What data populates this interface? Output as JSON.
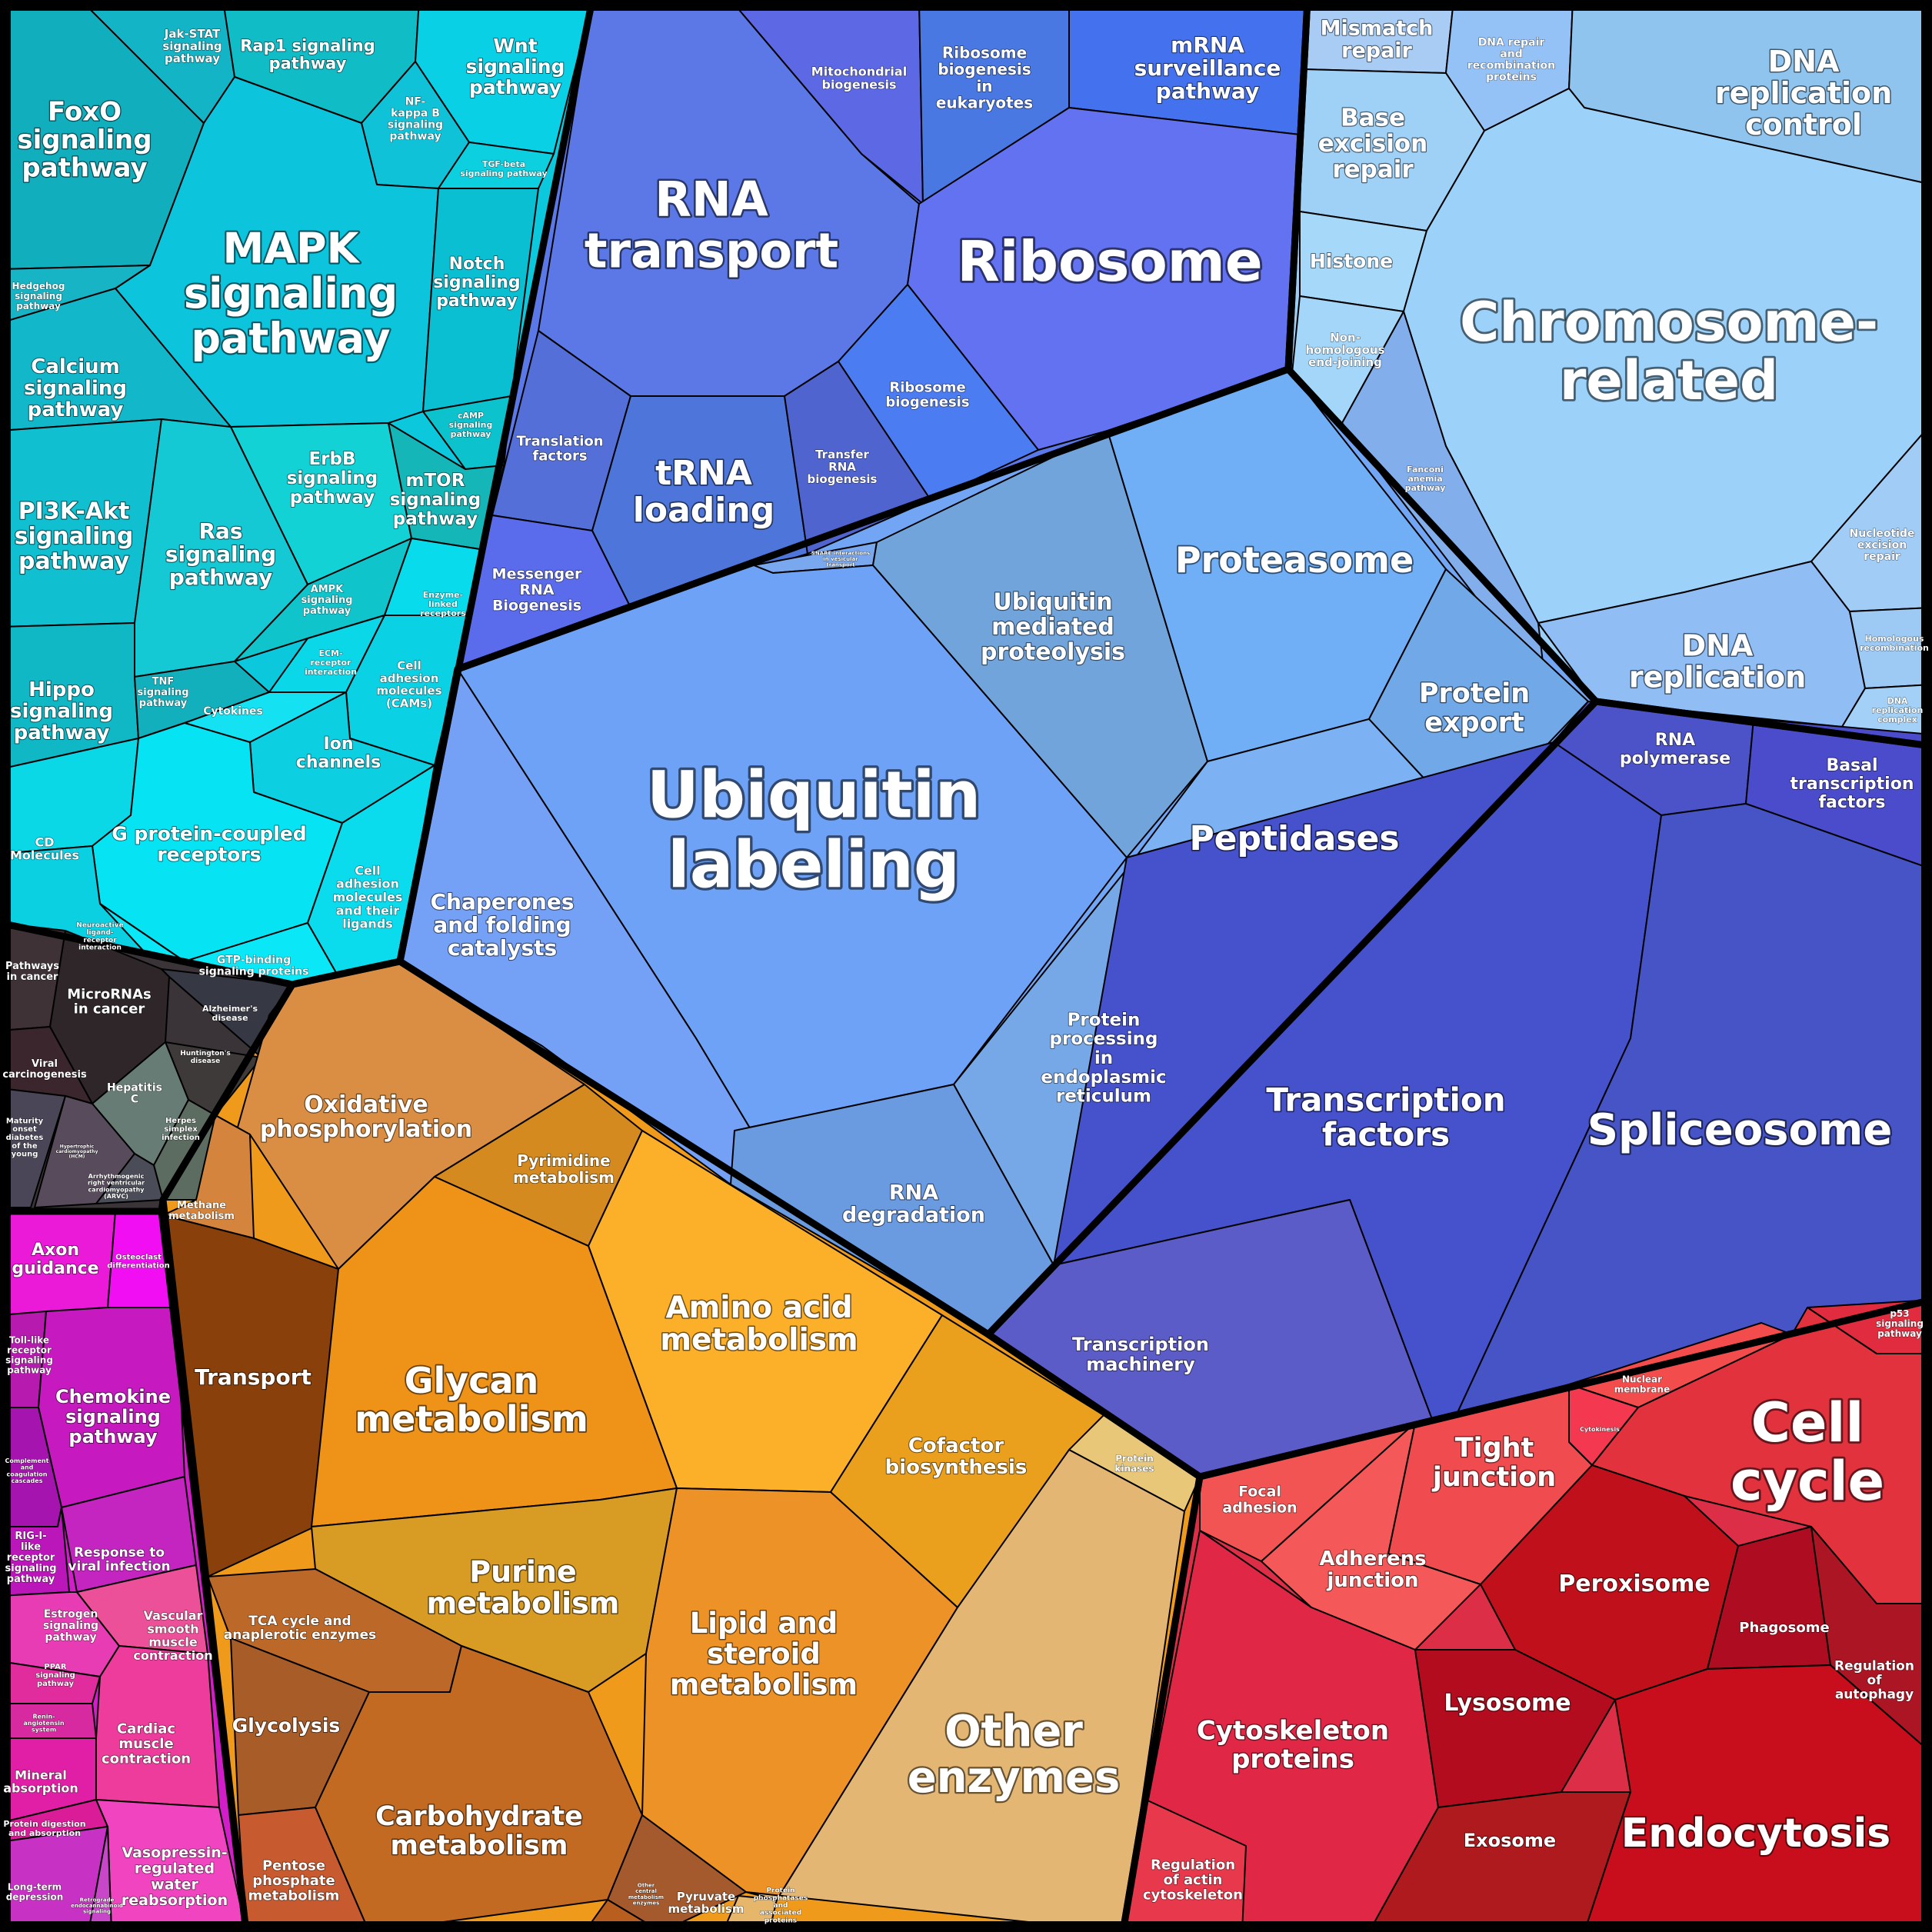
{
  "diagram": {
    "groups": [
      {
        "name": "signaling",
        "color": "#0bc8dc"
      },
      {
        "name": "genetic-information",
        "color": "#5a78e8"
      },
      {
        "name": "chromosome",
        "color": "#9ccdf5"
      },
      {
        "name": "protein-processing",
        "color": "#72a6f4"
      },
      {
        "name": "transcription",
        "color": "#4753cc"
      },
      {
        "name": "diseases",
        "color": "#3a3438"
      },
      {
        "name": "metabolism",
        "color": "#ef9a1a"
      },
      {
        "name": "organismal-systems",
        "color": "#d21ec8"
      },
      {
        "name": "cellular-processes",
        "color": "#dc2e46"
      }
    ],
    "cells": [
      {
        "id": "foxo",
        "label": "FoxO signaling pathway",
        "color": "#11aebe"
      },
      {
        "id": "jak-stat",
        "label": "Jak-STAT signaling pathway",
        "color": "#12b4c6"
      },
      {
        "id": "rap1",
        "label": "Rap1 signaling pathway",
        "color": "#10bcc6"
      },
      {
        "id": "wnt",
        "label": "Wnt signaling pathway",
        "color": "#0ad0e6"
      },
      {
        "id": "nfkb",
        "label": "NF-kappa B signaling pathway",
        "color": "#10c2d8"
      },
      {
        "id": "tgf",
        "label": "TGF-beta signaling pathway",
        "color": "#0ccfe0"
      },
      {
        "id": "mapk",
        "label": "MAPK signaling pathway",
        "color": "#0cc4dc"
      },
      {
        "id": "hedgehog",
        "label": "Hedgehog signaling pathway",
        "color": "#16b4c4"
      },
      {
        "id": "notch",
        "label": "Notch signaling pathway",
        "color": "#0bbfd2"
      },
      {
        "id": "calcium",
        "label": "Calcium signaling pathway",
        "color": "#12b8ca"
      },
      {
        "id": "camp",
        "label": "cAMP signaling pathway",
        "color": "#0cc2cc"
      },
      {
        "id": "erbb",
        "label": "ErbB signaling pathway",
        "color": "#12d2d6"
      },
      {
        "id": "mtor",
        "label": "mTOR signaling pathway",
        "color": "#14b6b8"
      },
      {
        "id": "pi3k",
        "label": "PI3K-Akt signaling pathway",
        "color": "#10c0d0"
      },
      {
        "id": "ras",
        "label": "Ras signaling pathway",
        "color": "#14c8d4"
      },
      {
        "id": "ampk",
        "label": "AMPK signaling pathway",
        "color": "#10c4cc"
      },
      {
        "id": "enzyme-linked",
        "label": "Enzyme-linked receptors",
        "color": "#08dcec"
      },
      {
        "id": "ecm",
        "label": "ECM-receptor interaction",
        "color": "#0ad8e8"
      },
      {
        "id": "cam",
        "label": "Cell adhesion molecules (CAMs)",
        "color": "#0ad2e4"
      },
      {
        "id": "hippo",
        "label": "Hippo signaling pathway",
        "color": "#10b8c6"
      },
      {
        "id": "tnf",
        "label": "TNF signaling pathway",
        "color": "#12b0bc"
      },
      {
        "id": "cytokines",
        "label": "Cytokines",
        "color": "#14e2f2"
      },
      {
        "id": "ion",
        "label": "Ion channels",
        "color": "#0ccfe2"
      },
      {
        "id": "cd",
        "label": "CD Molecules",
        "color": "#0ad8e6"
      },
      {
        "id": "gpcr",
        "label": "G protein-coupled receptors",
        "color": "#06e4f4"
      },
      {
        "id": "cell-adh-lig",
        "label": "Cell adhesion molecules and their ligands",
        "color": "#0adced"
      },
      {
        "id": "neuroactive",
        "label": "Neuroactive ligand-receptor interaction",
        "color": "#0ad0e2"
      },
      {
        "id": "gtp",
        "label": "GTP-binding signaling proteins",
        "color": "#0ae8f8"
      },
      {
        "id": "mito-bio",
        "label": "Mitochondrial biogenesis",
        "color": "#5c68e4"
      },
      {
        "id": "ribo-euk",
        "label": "Ribosome biogenesis in eukaryotes",
        "color": "#4a78e2"
      },
      {
        "id": "mrna-surv",
        "label": "mRNA surveillance pathway",
        "color": "#4472ee"
      },
      {
        "id": "rna-transport",
        "label": "RNA transport",
        "color": "#5b78e6"
      },
      {
        "id": "ribosome",
        "label": "Ribosome",
        "color": "#6272f0"
      },
      {
        "id": "ribo-bio",
        "label": "Ribosome biogenesis",
        "color": "#4c7cf2"
      },
      {
        "id": "transl-factors",
        "label": "Translation factors",
        "color": "#5470d8"
      },
      {
        "id": "trna-loading",
        "label": "tRNA loading",
        "color": "#4e76da"
      },
      {
        "id": "transfer-rna",
        "label": "Transfer RNA biogenesis",
        "color": "#5064d0"
      },
      {
        "id": "messenger-rna",
        "label": "Messenger RNA Biogenesis",
        "color": "#5a6cec"
      },
      {
        "id": "mismatch",
        "label": "Mismatch repair",
        "color": "#a8ccf4"
      },
      {
        "id": "dna-repair-rec",
        "label": "DNA repair and recombination proteins",
        "color": "#94c2f6"
      },
      {
        "id": "dna-rep-ctrl",
        "label": "DNA replication control",
        "color": "#8fc4ee"
      },
      {
        "id": "ber",
        "label": "Base excision repair",
        "color": "#9fd0f6"
      },
      {
        "id": "histone",
        "label": "Histone",
        "color": "#a6d8fa"
      },
      {
        "id": "chromosome",
        "label": "Chromosome-related",
        "color": "#9cd2fa"
      },
      {
        "id": "nhej",
        "label": "Non-homologous end-joining",
        "color": "#a4d6fa"
      },
      {
        "id": "fanconi",
        "label": "Fanconi anemia pathway",
        "color": "#82aeec"
      },
      {
        "id": "ner",
        "label": "Nucleotide excision repair",
        "color": "#a0ccf6"
      },
      {
        "id": "dna-rep",
        "label": "DNA replication",
        "color": "#90bef4"
      },
      {
        "id": "homologous",
        "label": "Homologous recombination",
        "color": "#9ccaf4"
      },
      {
        "id": "dna-rep-complex",
        "label": "DNA replication complex",
        "color": "#a2d0f6"
      },
      {
        "id": "snare",
        "label": "SNARE interactions in vesicular transport",
        "color": "#7aa8ee"
      },
      {
        "id": "ubiq-prot",
        "label": "Ubiquitin mediated proteolysis",
        "color": "#72a4dc"
      },
      {
        "id": "proteasome",
        "label": "Proteasome",
        "color": "#70aef6"
      },
      {
        "id": "ubiq-label",
        "label": "Ubiquitin labeling",
        "color": "#6ea2f6"
      },
      {
        "id": "protein-export",
        "label": "Protein export",
        "color": "#70a8e8"
      },
      {
        "id": "chaperones",
        "label": "Chaperones and folding catalysts",
        "color": "#74a0f6"
      },
      {
        "id": "peptidases",
        "label": "Peptidases",
        "color": "#7cb2f4"
      },
      {
        "id": "er-proc",
        "label": "Protein processing in endoplasmic reticulum",
        "color": "#76a8e8"
      },
      {
        "id": "rna-deg",
        "label": "RNA degradation",
        "color": "#6a9ae0"
      },
      {
        "id": "rna-pol",
        "label": "RNA polymerase",
        "color": "#4c52c8"
      },
      {
        "id": "basal-tf",
        "label": "Basal transcription factors",
        "color": "#4b4ccc"
      },
      {
        "id": "tf",
        "label": "Transcription factors",
        "color": "#4652cc"
      },
      {
        "id": "spliceosome",
        "label": "Spliceosome",
        "color": "#4654c6"
      },
      {
        "id": "trans-mach",
        "label": "Transcription machinery",
        "color": "#5c5cc8"
      },
      {
        "id": "path-cancer",
        "label": "Pathways in cancer",
        "color": "#3e3236"
      },
      {
        "id": "microrna",
        "label": "MicroRNAs in cancer",
        "color": "#2e2628"
      },
      {
        "id": "alzheimer",
        "label": "Alzheimer's disease",
        "color": "#363844"
      },
      {
        "id": "viral-carc",
        "label": "Viral carcinogenesis",
        "color": "#3a262c"
      },
      {
        "id": "huntington",
        "label": "Huntington's disease",
        "color": "#3e3a3a"
      },
      {
        "id": "hepatitis",
        "label": "Hepatitis C",
        "color": "#667c74"
      },
      {
        "id": "herpes",
        "label": "Herpes simplex infection",
        "color": "#5c6c60"
      },
      {
        "id": "mody",
        "label": "Maturity onset diabetes of the young",
        "color": "#4a4658"
      },
      {
        "id": "hcm",
        "label": "Hypertrophic cardiomyopathy (HCM)",
        "color": "#584c5c"
      },
      {
        "id": "arvc",
        "label": "Arrhythmogenic right ventricular cardiomyopathy (ARVC)",
        "color": "#4a4c58"
      },
      {
        "id": "oxphos",
        "label": "Oxidative phosphorylation",
        "color": "#da8e44"
      },
      {
        "id": "pyrimidine",
        "label": "Pyrimidine metabolism",
        "color": "#d48a1e"
      },
      {
        "id": "methane",
        "label": "Methane metabolism",
        "color": "#d4843c"
      },
      {
        "id": "amino-acid",
        "label": "Amino acid metabolism",
        "color": "#fcb02a"
      },
      {
        "id": "transport",
        "label": "Transport",
        "color": "#8a400a"
      },
      {
        "id": "glycan",
        "label": "Glycan metabolism",
        "color": "#ee9218"
      },
      {
        "id": "cofactor",
        "label": "Cofactor biosynthesis",
        "color": "#eaa01c"
      },
      {
        "id": "protein-kinases",
        "label": "Protein kinases",
        "color": "#e8c878"
      },
      {
        "id": "purine",
        "label": "Purine metabolism",
        "color": "#d89c24"
      },
      {
        "id": "lipid",
        "label": "Lipid and steroid metabolism",
        "color": "#ec9226"
      },
      {
        "id": "tca",
        "label": "TCA cycle and anaplerotic enzymes",
        "color": "#bc6828"
      },
      {
        "id": "other-enz",
        "label": "Other enzymes",
        "color": "#e4b674"
      },
      {
        "id": "glycolysis",
        "label": "Glycolysis",
        "color": "#a85c28"
      },
      {
        "id": "carb",
        "label": "Carbohydrate metabolism",
        "color": "#c26a22"
      },
      {
        "id": "pentose",
        "label": "Pentose phosphate metabolism",
        "color": "#c85a30"
      },
      {
        "id": "other-central",
        "label": "Other central metabolism enzymes",
        "color": "#a45a2c"
      },
      {
        "id": "pyruvate",
        "label": "Pyruvate metabolism",
        "color": "#b85e1e"
      },
      {
        "id": "protein-phosphatases",
        "label": "Protein phosphatases and associated proteins",
        "color": "#e6b66a"
      },
      {
        "id": "axon",
        "label": "Axon guidance",
        "color": "#ea1ad8"
      },
      {
        "id": "osteoclast",
        "label": "Osteoclast differentiation",
        "color": "#f20ef2"
      },
      {
        "id": "toll",
        "label": "Toll-like receptor signaling pathway",
        "color": "#b61aae"
      },
      {
        "id": "chemokine",
        "label": "Chemokine signaling pathway",
        "color": "#c61ac0"
      },
      {
        "id": "complement",
        "label": "Complement and coagulation cascades",
        "color": "#a614b0"
      },
      {
        "id": "rig",
        "label": "RIG-I-like receptor signaling pathway",
        "color": "#ba16ba"
      },
      {
        "id": "viral-inf",
        "label": "Response to viral infection",
        "color": "#c424c0"
      },
      {
        "id": "estrogen",
        "label": "Estrogen signaling pathway",
        "color": "#e83cb4"
      },
      {
        "id": "vascular",
        "label": "Vascular smooth muscle contraction",
        "color": "#ec5098"
      },
      {
        "id": "ppar",
        "label": "PPAR signaling pathway",
        "color": "#e02c9c"
      },
      {
        "id": "renin",
        "label": "Renin-angiotensin system",
        "color": "#d82aa0"
      },
      {
        "id": "cardiac",
        "label": "Cardiac muscle contraction",
        "color": "#ee3c9c"
      },
      {
        "id": "mineral",
        "label": "Mineral absorption",
        "color": "#e01ea6"
      },
      {
        "id": "protein-digestion",
        "label": "Protein digestion and absorption",
        "color": "#da1c98"
      },
      {
        "id": "vasopressin",
        "label": "Vasopressin-regulated water reabsorption",
        "color": "#f044c0"
      },
      {
        "id": "ltd",
        "label": "Long-term depression",
        "color": "#c832c4"
      },
      {
        "id": "retrograde",
        "label": "Retrograde endocannabinoid signaling",
        "color": "#c846c8"
      },
      {
        "id": "p53",
        "label": "p53 signaling pathway",
        "color": "#e02c3e"
      },
      {
        "id": "nuclear-mem",
        "label": "Nuclear membrane",
        "color": "#f24c4c"
      },
      {
        "id": "cytokinesis",
        "label": "Cytokinesis",
        "color": "#f43850"
      },
      {
        "id": "cell-cycle",
        "label": "Cell cycle",
        "color": "#e2323e"
      },
      {
        "id": "focal",
        "label": "Focal adhesion",
        "color": "#f25454"
      },
      {
        "id": "tight",
        "label": "Tight junction",
        "color": "#f04c50"
      },
      {
        "id": "adherens",
        "label": "Adherens junction",
        "color": "#f45858"
      },
      {
        "id": "peroxisome",
        "label": "Peroxisome",
        "color": "#c0101c"
      },
      {
        "id": "phagosome",
        "label": "Phagosome",
        "color": "#ae0c20"
      },
      {
        "id": "autophagy",
        "label": "Regulation of autophagy",
        "color": "#ac1624"
      },
      {
        "id": "cytoskeleton",
        "label": "Cytoskeleton proteins",
        "color": "#e02846"
      },
      {
        "id": "lysosome",
        "label": "Lysosome",
        "color": "#b20c1e"
      },
      {
        "id": "reg-actin",
        "label": "Regulation of actin cytoskeleton",
        "color": "#e8384c"
      },
      {
        "id": "exosome",
        "label": "Exosome",
        "color": "#ae1a1e"
      },
      {
        "id": "endocytosis",
        "label": "Endocytosis",
        "color": "#c80e1c"
      }
    ]
  }
}
